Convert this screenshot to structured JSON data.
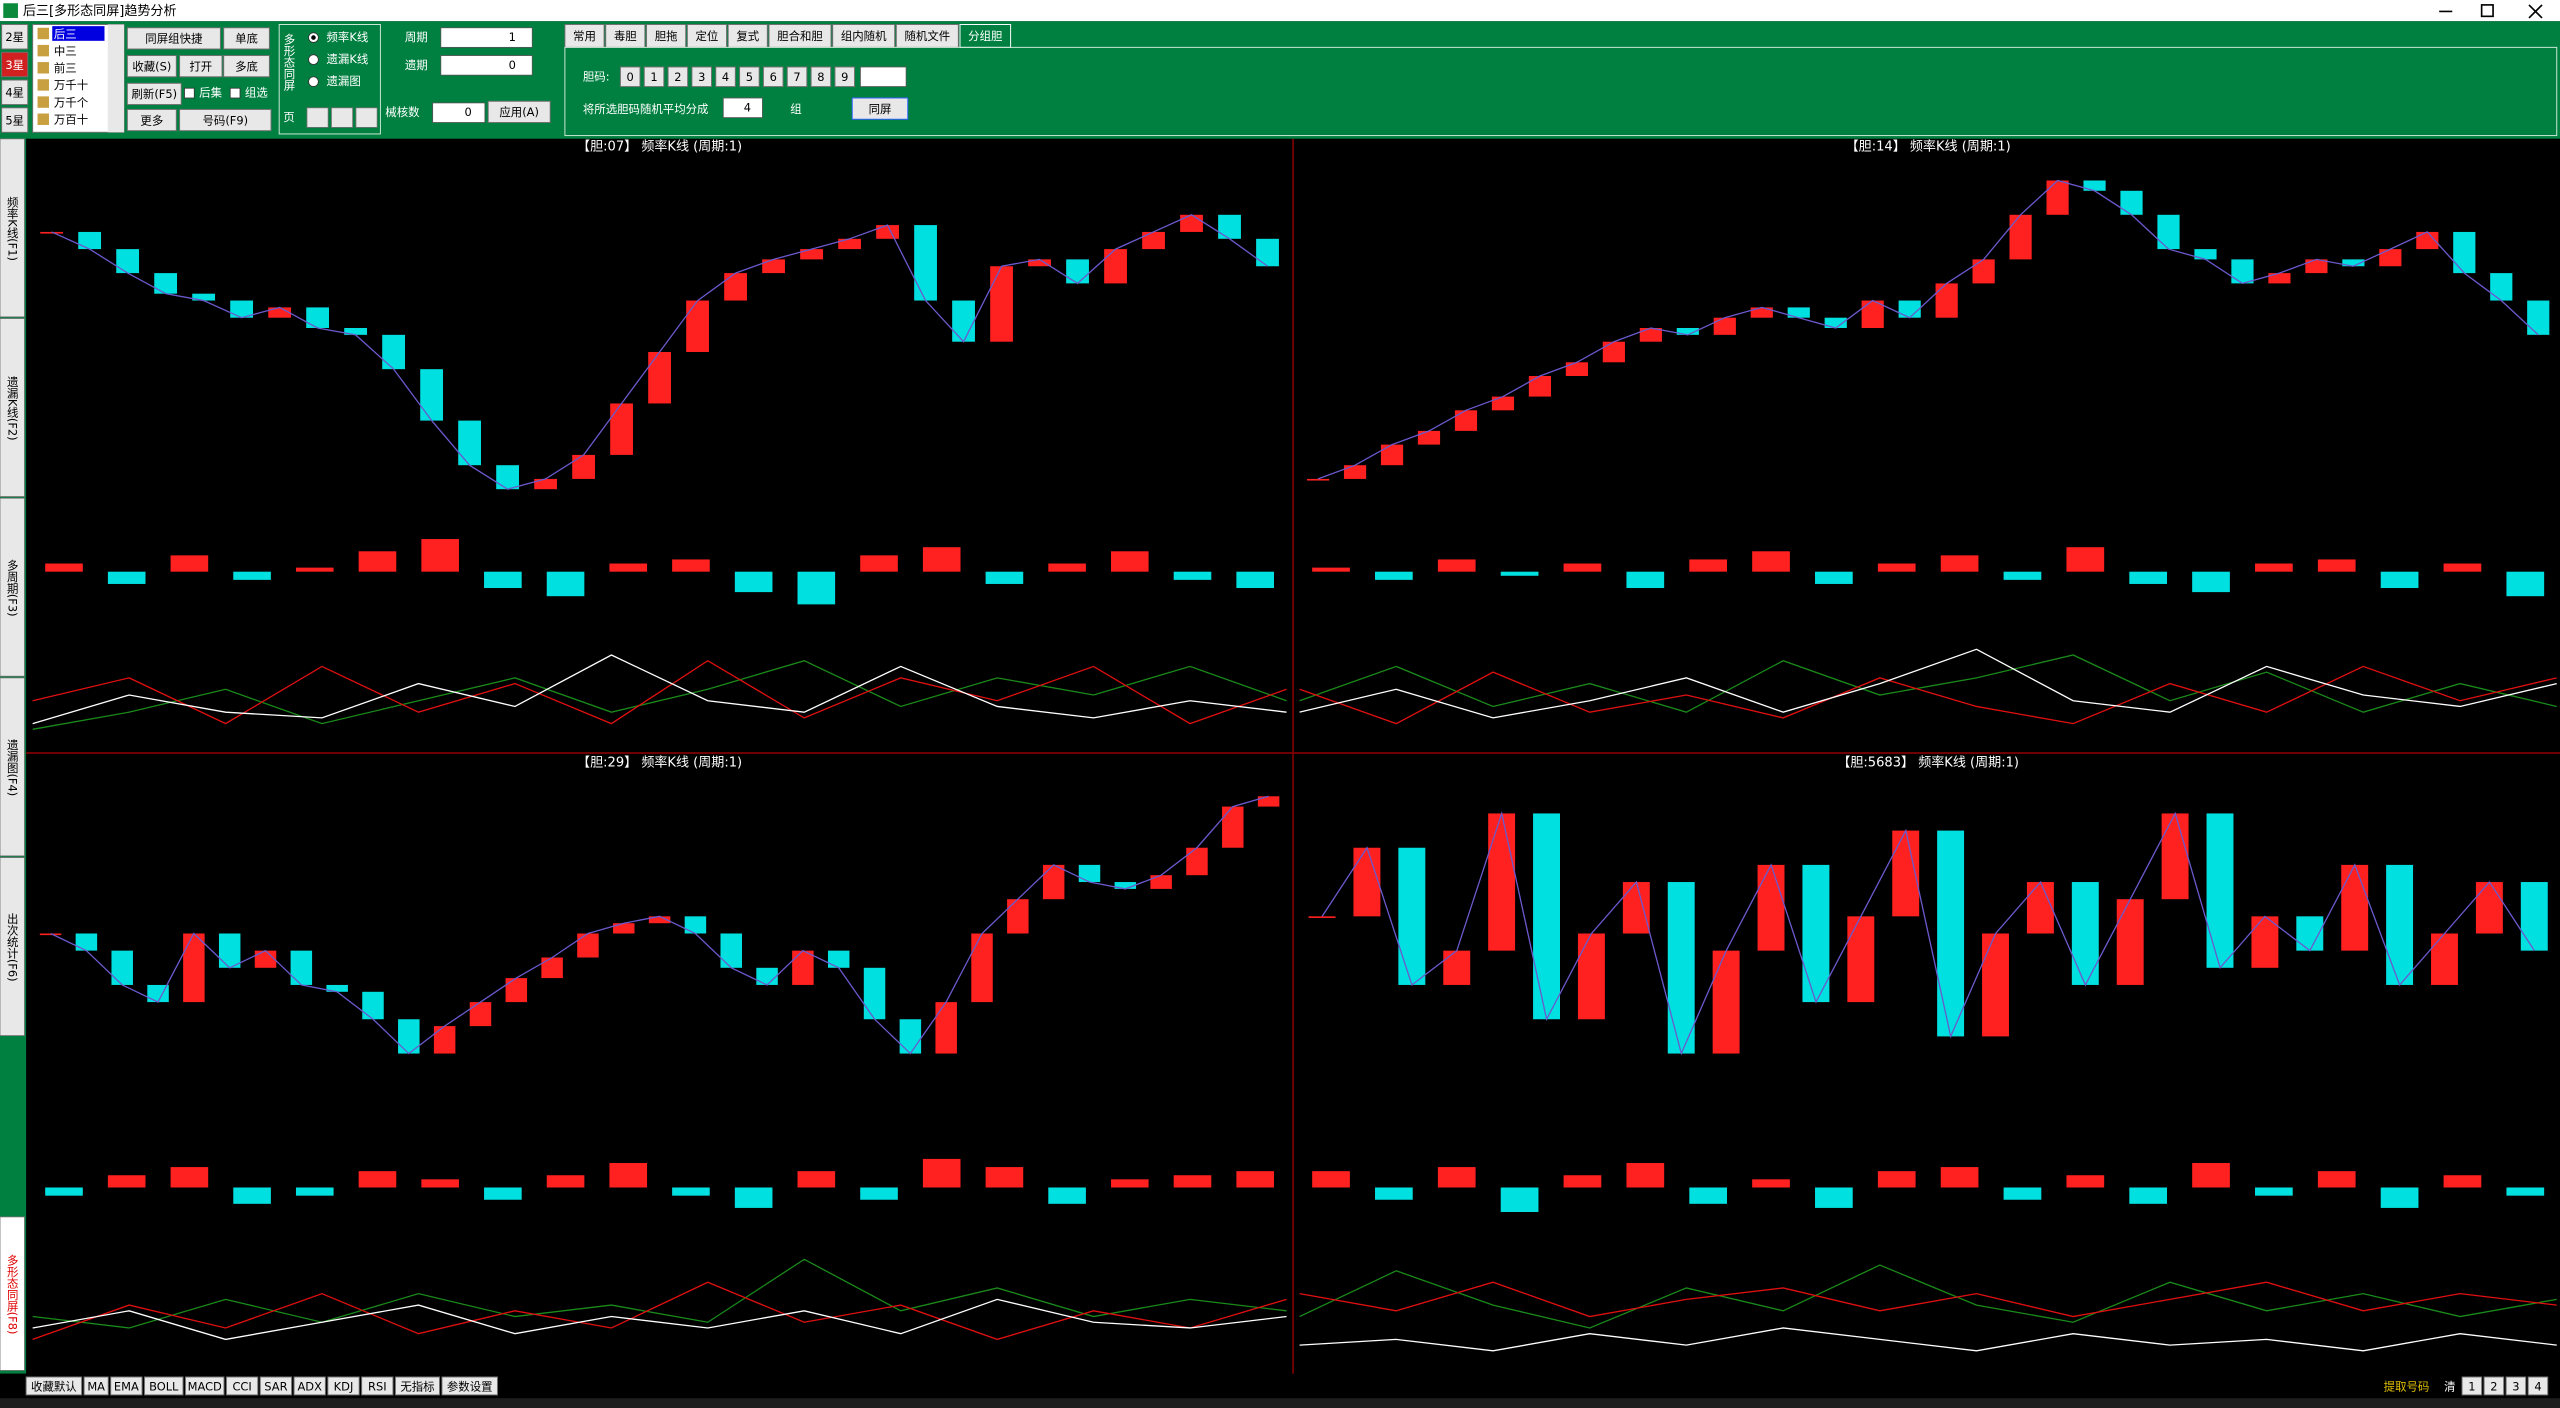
{
  "window": {
    "title": "后三[多形态同屏]趋势分析"
  },
  "toolbar": {
    "stars": [
      "2星",
      "3星",
      "4星",
      "5星"
    ],
    "active_star": 1,
    "positions": [
      "后三",
      "中三",
      "前三",
      "万千十",
      "万千个",
      "万百十"
    ],
    "buttons": [
      "同屏组快捷",
      "单底",
      "收藏(S)",
      "打开",
      "多底",
      "刷新(F5)",
      "更多",
      "号码(F9)"
    ],
    "checks": [
      "后集",
      "组选"
    ],
    "group": {
      "title": "多形态同屏",
      "options": [
        "频率K线",
        "遗漏K线",
        "遗漏图"
      ],
      "page": "页"
    },
    "period_label": "周期",
    "period": 1,
    "omit_label": "遗期",
    "omit": 0,
    "kernel_label": "械核数",
    "kernel": 0,
    "apply": "应用(A)"
  },
  "tabs": [
    "常用",
    "毒胆",
    "胆拖",
    "定位",
    "复式",
    "胆合和胆",
    "组内随机",
    "随机文件",
    "分组胆"
  ],
  "active_tab": 8,
  "dan": {
    "label": "胆码:",
    "digits": [
      0,
      1,
      2,
      3,
      4,
      5,
      6,
      7,
      8,
      9
    ],
    "split_label": "将所选胆码随机平均分成",
    "groups": 4,
    "group_unit": "组",
    "button": "同屏"
  },
  "side_tabs": [
    "频率K线(F1)",
    "遗漏K线(F2)",
    "多周期(F3)",
    "遗漏图(F4)",
    "出次统计(F6)",
    "多形态同屏(F8)"
  ],
  "active_side_tab": 5,
  "bottom": {
    "buttons": [
      "收藏默认",
      "MA",
      "EMA",
      "BOLL",
      "MACD",
      "CCI",
      "SAR",
      "ADX",
      "KDJ",
      "RSI",
      "无指标",
      "参数设置"
    ],
    "extract": "提取号码",
    "clear": "清",
    "pages": [
      1,
      2,
      3,
      4
    ]
  },
  "chart_colors": {
    "up": "#ff2020",
    "down": "#00e0e0",
    "band": "#6a5acd",
    "k": "#ffffff",
    "d": "#e01010",
    "j": "#1a8a1a",
    "separator": "#800000"
  },
  "chart_data": [
    {
      "type": "candlestick",
      "title": "【胆:07】 频率K线 (周期:1)",
      "ylim": [
        0,
        100
      ],
      "osc_lim": [
        -10,
        10
      ],
      "values": [
        80,
        75,
        68,
        62,
        60,
        55,
        58,
        52,
        50,
        40,
        25,
        12,
        5,
        8,
        15,
        30,
        45,
        60,
        68,
        72,
        75,
        78,
        82,
        60,
        48,
        70,
        72,
        65,
        75,
        80,
        85,
        78,
        70
      ],
      "oscillator": [
        2,
        -3,
        4,
        -2,
        1,
        5,
        8,
        -4,
        -6,
        2,
        3,
        -5,
        -8,
        4,
        6,
        -3,
        2,
        5,
        -2,
        -4
      ],
      "k": [
        20,
        45,
        30,
        25,
        55,
        35,
        80,
        40,
        30,
        70,
        35,
        25,
        40,
        30
      ],
      "d": [
        40,
        60,
        20,
        70,
        30,
        55,
        20,
        75,
        25,
        60,
        40,
        70,
        20,
        50
      ],
      "j": [
        15,
        30,
        50,
        20,
        40,
        60,
        30,
        50,
        75,
        35,
        60,
        45,
        70,
        40
      ]
    },
    {
      "type": "candlestick",
      "title": "【胆:14】 频率K线 (周期:1)",
      "ylim": [
        0,
        100
      ],
      "osc_lim": [
        -10,
        10
      ],
      "values": [
        8,
        12,
        18,
        22,
        28,
        32,
        38,
        42,
        48,
        52,
        50,
        55,
        58,
        55,
        52,
        60,
        55,
        65,
        72,
        85,
        95,
        92,
        85,
        75,
        72,
        65,
        68,
        72,
        70,
        75,
        80,
        68,
        60,
        50
      ],
      "oscillator": [
        1,
        -2,
        3,
        -1,
        2,
        -4,
        3,
        5,
        -3,
        2,
        4,
        -2,
        6,
        -3,
        -5,
        2,
        3,
        -4,
        2,
        -6
      ],
      "k": [
        30,
        50,
        25,
        40,
        60,
        30,
        55,
        85,
        40,
        30,
        70,
        45,
        35,
        55
      ],
      "d": [
        50,
        20,
        65,
        30,
        45,
        25,
        60,
        35,
        20,
        55,
        30,
        70,
        40,
        60
      ],
      "j": [
        40,
        70,
        35,
        55,
        30,
        75,
        45,
        60,
        80,
        40,
        65,
        30,
        55,
        35
      ]
    },
    {
      "type": "candlestick",
      "title": "【胆:29】 频率K线 (周期:1)",
      "ylim": [
        0,
        100
      ],
      "osc_lim": [
        -10,
        10
      ],
      "values": [
        55,
        50,
        40,
        35,
        55,
        45,
        50,
        40,
        38,
        30,
        20,
        28,
        35,
        42,
        48,
        55,
        58,
        60,
        55,
        45,
        40,
        50,
        45,
        30,
        20,
        35,
        55,
        65,
        75,
        70,
        68,
        72,
        80,
        92,
        95
      ],
      "oscillator": [
        -2,
        3,
        5,
        -4,
        -2,
        4,
        2,
        -3,
        3,
        6,
        -2,
        -5,
        4,
        -3,
        7,
        5,
        -4,
        2,
        3,
        4
      ],
      "k": [
        30,
        45,
        20,
        35,
        50,
        25,
        40,
        30,
        45,
        25,
        55,
        35,
        30,
        40
      ],
      "d": [
        20,
        50,
        30,
        60,
        25,
        45,
        30,
        70,
        35,
        50,
        20,
        45,
        30,
        55
      ],
      "j": [
        40,
        30,
        55,
        35,
        60,
        40,
        50,
        35,
        90,
        45,
        65,
        40,
        55,
        45
      ]
    },
    {
      "type": "candlestick",
      "title": "【胆:5683】 频率K线 (周期:1)",
      "ylim": [
        0,
        100
      ],
      "osc_lim": [
        -10,
        10
      ],
      "values": [
        60,
        80,
        40,
        50,
        90,
        30,
        55,
        70,
        20,
        50,
        75,
        35,
        60,
        85,
        25,
        55,
        70,
        40,
        65,
        90,
        45,
        60,
        50,
        75,
        40,
        55,
        70,
        50
      ],
      "oscillator": [
        4,
        -3,
        5,
        -6,
        3,
        6,
        -4,
        2,
        -5,
        4,
        5,
        -3,
        3,
        -4,
        6,
        -2,
        4,
        -5,
        3,
        -2
      ],
      "k": [
        15,
        20,
        10,
        25,
        15,
        30,
        20,
        10,
        25,
        15,
        20,
        10,
        25,
        15
      ],
      "d": [
        60,
        45,
        70,
        40,
        55,
        65,
        45,
        60,
        40,
        55,
        70,
        45,
        60,
        50
      ],
      "j": [
        40,
        80,
        50,
        30,
        65,
        45,
        85,
        50,
        35,
        70,
        45,
        60,
        40,
        55
      ]
    }
  ]
}
